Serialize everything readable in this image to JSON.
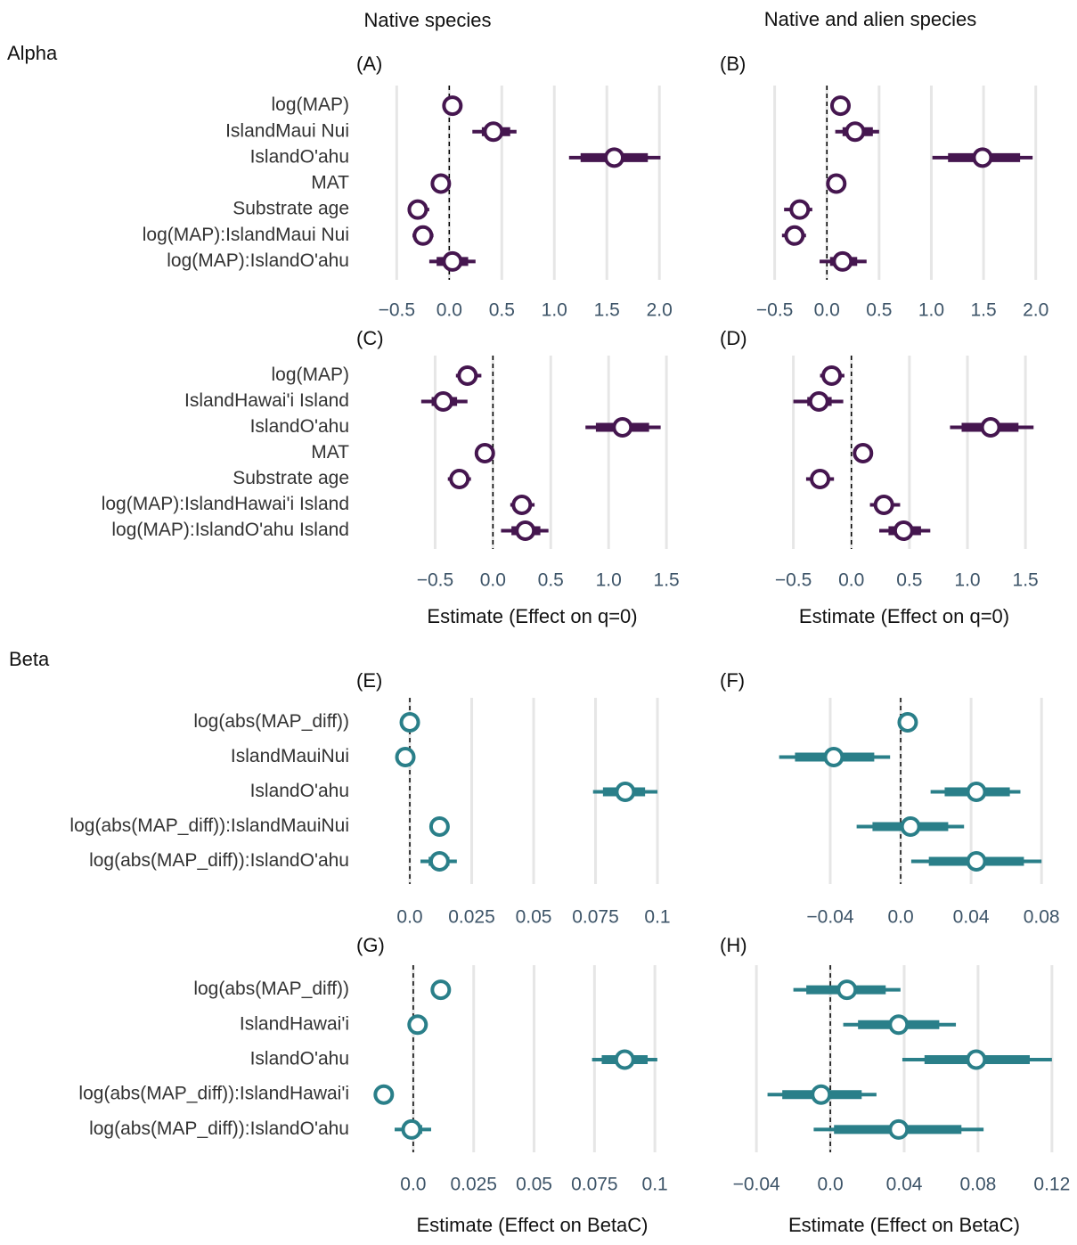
{
  "column_titles": [
    "Native species",
    "Native and alien species"
  ],
  "row_titles": [
    "Alpha",
    "Beta"
  ],
  "chart_data": [
    {
      "type": "pointrange",
      "title": "(A)",
      "color": "#45164f",
      "grid": true,
      "zero_line": true,
      "categories": [
        "log(MAP)",
        "IslandMaui Nui",
        "IslandO'ahu",
        "MAT",
        "Substrate age",
        "log(MAP):IslandMaui Nui",
        "log(MAP):IslandO'ahu"
      ],
      "values": [
        0.03,
        0.42,
        1.57,
        -0.08,
        -0.3,
        -0.25,
        0.03
      ],
      "inner_low": [
        0.01,
        0.31,
        1.25,
        -0.1,
        -0.34,
        -0.29,
        -0.12
      ],
      "inner_high": [
        0.05,
        0.58,
        1.89,
        -0.05,
        -0.25,
        -0.2,
        0.18
      ],
      "outer_low": [
        0.0,
        0.22,
        1.14,
        -0.14,
        -0.39,
        -0.35,
        -0.19
      ],
      "outer_high": [
        0.06,
        0.64,
        2.01,
        -0.01,
        -0.19,
        -0.15,
        0.25
      ],
      "xlim": [
        -0.63,
        2.21
      ],
      "xticks": [
        {
          "value": -0.5,
          "label": "−0.5"
        },
        {
          "value": 0,
          "label": "0.0"
        },
        0.5,
        {
          "value": 1,
          "label": "1.0"
        },
        1.5,
        {
          "value": 2,
          "label": "2.0"
        }
      ]
    },
    {
      "type": "pointrange",
      "title": "(B)",
      "color": "#45164f",
      "grid": true,
      "zero_line": true,
      "values": [
        0.13,
        0.27,
        1.49,
        0.09,
        -0.26,
        -0.31,
        0.15
      ],
      "inner_low": [
        0.08,
        0.15,
        1.16,
        0.06,
        -0.33,
        -0.37,
        0.03
      ],
      "inner_high": [
        0.17,
        0.44,
        1.85,
        0.12,
        -0.2,
        -0.25,
        0.29
      ],
      "outer_low": [
        0.04,
        0.08,
        1.01,
        0.03,
        -0.41,
        -0.43,
        -0.07
      ],
      "outer_high": [
        0.21,
        0.5,
        1.97,
        0.15,
        -0.14,
        -0.2,
        0.38
      ],
      "xlim": [
        -0.71,
        2.19
      ],
      "xticks": [
        {
          "value": -0.5,
          "label": "−0.5"
        },
        {
          "value": 0,
          "label": "0.0"
        },
        0.5,
        {
          "value": 1,
          "label": "1.0"
        },
        1.5,
        {
          "value": 2,
          "label": "2.0"
        }
      ]
    },
    {
      "type": "pointrange",
      "title": "(C)",
      "color": "#45164f",
      "grid": true,
      "zero_line": true,
      "xlabel": "Estimate (Effect on q=0)",
      "categories": [
        "log(MAP)",
        "IslandHawai'i Island",
        "IslandO'ahu",
        "MAT",
        "Substrate age",
        "log(MAP):IslandHawai'i Island",
        "log(MAP):IslandO'ahu Island"
      ],
      "values": [
        -0.22,
        -0.43,
        1.12,
        -0.07,
        -0.29,
        0.25,
        0.28
      ],
      "inner_low": [
        -0.27,
        -0.53,
        0.89,
        -0.1,
        -0.34,
        0.2,
        0.16
      ],
      "inner_high": [
        -0.16,
        -0.31,
        1.35,
        -0.04,
        -0.24,
        0.31,
        0.41
      ],
      "outer_low": [
        -0.32,
        -0.62,
        0.8,
        -0.12,
        -0.39,
        0.15,
        0.07
      ],
      "outer_high": [
        -0.1,
        -0.22,
        1.45,
        -0.02,
        -0.19,
        0.36,
        0.48
      ],
      "xlim": [
        -0.95,
        1.63
      ],
      "xticks": [
        {
          "value": -0.5,
          "label": "−0.5"
        },
        {
          "value": 0,
          "label": "0.0"
        },
        0.5,
        {
          "value": 1,
          "label": "1.0"
        },
        1.5
      ]
    },
    {
      "type": "pointrange",
      "title": "(D)",
      "color": "#45164f",
      "grid": true,
      "zero_line": true,
      "xlabel": "Estimate (Effect on q=0)",
      "values": [
        -0.17,
        -0.28,
        1.2,
        0.1,
        -0.27,
        0.28,
        0.45
      ],
      "inner_low": [
        -0.22,
        -0.38,
        0.95,
        0.07,
        -0.33,
        0.22,
        0.32
      ],
      "inner_high": [
        -0.11,
        -0.17,
        1.44,
        0.13,
        -0.21,
        0.35,
        0.6
      ],
      "outer_low": [
        -0.27,
        -0.5,
        0.85,
        0.05,
        -0.39,
        0.16,
        0.24
      ],
      "outer_high": [
        -0.06,
        -0.07,
        1.57,
        0.15,
        -0.15,
        0.42,
        0.68
      ],
      "xlim": [
        -0.85,
        1.76
      ],
      "xticks": [
        {
          "value": -0.5,
          "label": "−0.5"
        },
        {
          "value": 0,
          "label": "0.0"
        },
        0.5,
        {
          "value": 1,
          "label": "1.0"
        },
        1.5
      ]
    },
    {
      "type": "pointrange",
      "title": "(E)",
      "color": "#2a7f89",
      "grid": true,
      "zero_line": true,
      "categories": [
        "log(abs(MAP_diff))",
        "IslandMauiNui",
        "IslandO'ahu",
        "log(abs(MAP_diff)):IslandMauiNui",
        "log(abs(MAP_diff)):IslandO'ahu"
      ],
      "values": [
        0.0,
        -0.0018,
        0.087,
        0.012,
        0.012
      ],
      "inner_low": [
        -0.0005,
        -0.0022,
        0.078,
        0.0115,
        0.0076
      ],
      "inner_high": [
        0.0005,
        -0.0014,
        0.095,
        0.0125,
        0.016
      ],
      "outer_low": [
        -0.001,
        -0.0025,
        0.074,
        0.011,
        0.0043
      ],
      "outer_high": [
        0.001,
        -0.0011,
        0.1,
        0.013,
        0.019
      ],
      "xlim": [
        -0.0108,
        0.1097
      ],
      "xticks": [
        {
          "value": 0,
          "label": "0.0"
        },
        0.025,
        0.05,
        0.075,
        0.1
      ]
    },
    {
      "type": "pointrange",
      "title": "(F)",
      "color": "#2a7f89",
      "grid": true,
      "zero_line": true,
      "values": [
        0.004,
        -0.038,
        0.043,
        0.0056,
        0.043
      ],
      "inner_low": [
        0.002,
        -0.06,
        0.025,
        -0.016,
        0.016
      ],
      "inner_high": [
        0.006,
        -0.015,
        0.062,
        0.027,
        0.07
      ],
      "outer_low": [
        0.001,
        -0.069,
        0.017,
        -0.025,
        0.006
      ],
      "outer_high": [
        0.007,
        -0.006,
        0.068,
        0.036,
        0.08
      ],
      "xlim": [
        -0.084,
        0.088
      ],
      "xticks": [
        {
          "value": -0.04,
          "label": "−0.04"
        },
        {
          "value": 0,
          "label": "0.0"
        },
        0.04,
        0.08
      ]
    },
    {
      "type": "pointrange",
      "title": "(G)",
      "color": "#2a7f89",
      "grid": true,
      "zero_line": true,
      "xlabel": "Estimate (Effect on BetaC)",
      "categories": [
        "log(abs(MAP_diff))",
        "IslandHawai'i",
        "IslandO'ahu",
        "log(abs(MAP_diff)):IslandHawai'i",
        "log(abs(MAP_diff)):IslandO'ahu"
      ],
      "values": [
        0.0114,
        0.0018,
        0.0875,
        -0.0122,
        -0.0007
      ],
      "inner_low": [
        0.0102,
        0.0014,
        0.078,
        -0.0126,
        -0.0044
      ],
      "inner_high": [
        0.0126,
        0.0022,
        0.097,
        -0.0118,
        0.0037
      ],
      "outer_low": [
        0.009,
        0.001,
        0.074,
        -0.013,
        -0.0077
      ],
      "outer_high": [
        0.0137,
        0.0026,
        0.101,
        -0.0114,
        0.0074
      ],
      "xlim": [
        -0.0125,
        0.111
      ],
      "xticks": [
        {
          "value": 0,
          "label": "0.0"
        },
        0.025,
        0.05,
        0.075,
        0.1
      ]
    },
    {
      "type": "pointrange",
      "title": "(H)",
      "color": "#2a7f89",
      "grid": true,
      "zero_line": true,
      "xlabel": "Estimate (Effect on BetaC)",
      "values": [
        0.009,
        0.037,
        0.079,
        -0.005,
        0.037
      ],
      "inner_low": [
        -0.013,
        0.015,
        0.051,
        -0.026,
        0.002
      ],
      "inner_high": [
        0.03,
        0.059,
        0.108,
        0.017,
        0.071
      ],
      "outer_low": [
        -0.02,
        0.007,
        0.039,
        -0.034,
        -0.009
      ],
      "outer_high": [
        0.038,
        0.068,
        0.12,
        0.025,
        0.083
      ],
      "xlim": [
        -0.042,
        0.122
      ],
      "xticks": [
        {
          "value": -0.04,
          "label": "−0.04"
        },
        {
          "value": 0,
          "label": "0.0"
        },
        0.04,
        0.08,
        0.12
      ]
    }
  ]
}
